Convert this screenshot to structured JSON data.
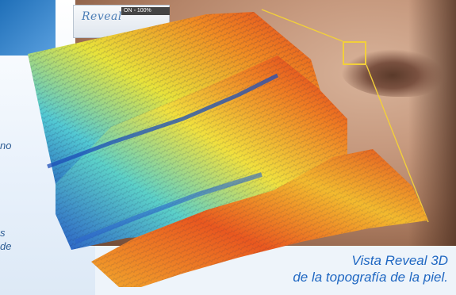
{
  "device": {
    "logo": "Reveal",
    "screen_label": "ON ◦ 100%"
  },
  "left_text": {
    "fragment1": "no",
    "fragment2": "s",
    "fragment3": "de"
  },
  "caption": {
    "line1": "Vista Reveal 3D",
    "line2": "de la topografía de la piel."
  },
  "colors": {
    "caption": "#1f67c2",
    "zoom_box": "#f2cf3a",
    "heat_low": "#1e4fb8",
    "heat_mid": "#52c9d3",
    "heat_high": "#e6401e"
  }
}
